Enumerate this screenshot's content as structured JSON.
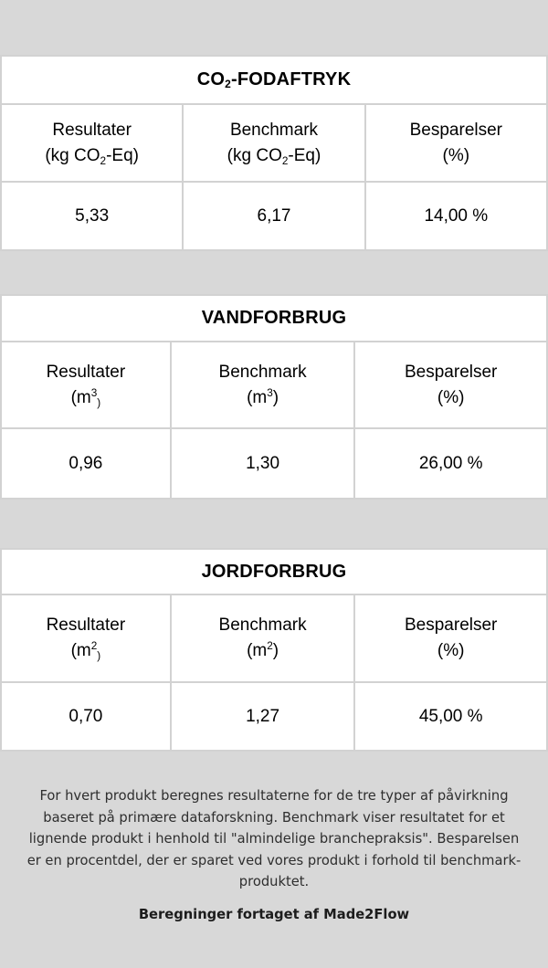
{
  "page": {
    "background_color": "#d8d8d8",
    "table_border_color": "#d2d2d2"
  },
  "tables": [
    {
      "name": "co2-fodaftryk",
      "title": {
        "pre": "CO",
        "sup": "",
        "sub": "2",
        "post": "-FODAFTRYK"
      },
      "columns": [
        {
          "label": "Resultater",
          "u_pre": "(kg CO",
          "u_sup": "",
          "u_sub": "2",
          "u_post": "-Eq)"
        },
        {
          "label": "Benchmark",
          "u_pre": "(kg CO",
          "u_sup": "",
          "u_sub": "2",
          "u_post": "-Eq)"
        },
        {
          "label": "Besparelser",
          "u_pre": "(%)",
          "u_sup": "",
          "u_sub": "",
          "u_post": ""
        }
      ],
      "values": [
        "5,33",
        "6,17",
        "14,00 %"
      ]
    },
    {
      "name": "vandforbrug",
      "title": {
        "pre": "VANDFORBRUG",
        "sup": "",
        "sub": "",
        "post": ""
      },
      "columns": [
        {
          "label": "Resultater",
          "u_pre": "(m",
          "u_sup": "3",
          "u_sub": ")",
          "u_post": ""
        },
        {
          "label": "Benchmark",
          "u_pre": "(m",
          "u_sup": "3",
          "u_sub": "",
          "u_post": ")"
        },
        {
          "label": "Besparelser",
          "u_pre": "(%)",
          "u_sup": "",
          "u_sub": "",
          "u_post": ""
        }
      ],
      "values": [
        "0,96",
        "1,30",
        "26,00 %"
      ]
    },
    {
      "name": "jordforbrug",
      "title": {
        "pre": "JORDFORBRUG",
        "sup": "",
        "sub": "",
        "post": ""
      },
      "columns": [
        {
          "label": "Resultater",
          "u_pre": "(m",
          "u_sup": "2",
          "u_sub": ")",
          "u_post": ""
        },
        {
          "label": "Benchmark",
          "u_pre": "(m",
          "u_sup": "2",
          "u_sub": "",
          "u_post": ")"
        },
        {
          "label": "Besparelser",
          "u_pre": "(%)",
          "u_sup": "",
          "u_sub": "",
          "u_post": ""
        }
      ],
      "values": [
        "0,70",
        "1,27",
        "45,00 %"
      ]
    }
  ],
  "footer": {
    "paragraph": "For hvert produkt beregnes resultaterne for de tre typer af påvirkning baseret på primære dataforskning. Benchmark viser resultatet for et lignende produkt i henhold til \"almindelige branchepraksis\". Besparelsen er en procentdel, der er sparet ved vores produkt i forhold til benchmark-produktet.",
    "credit": "Beregninger fortaget af Made2Flow"
  }
}
